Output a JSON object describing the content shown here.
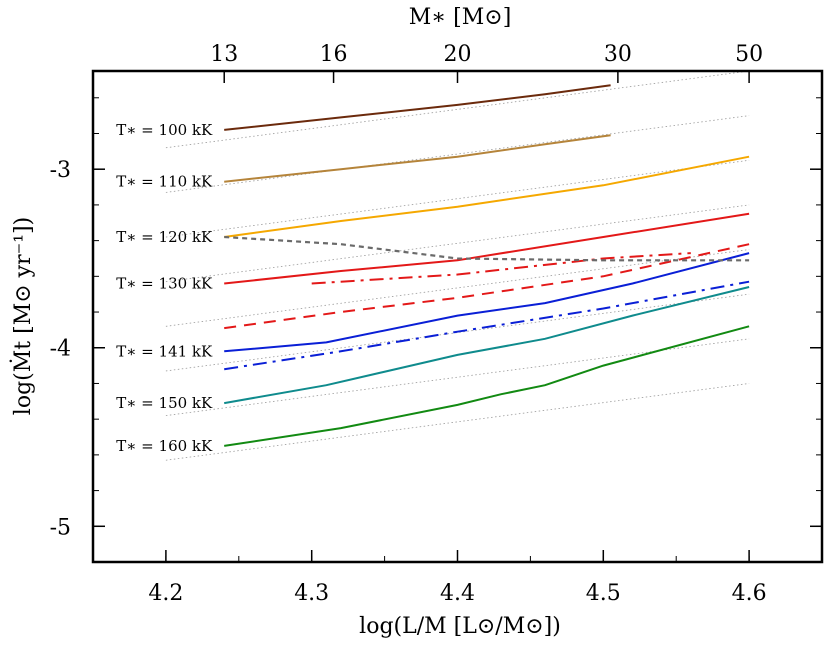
{
  "chart_data": {
    "type": "line",
    "xlabel": "log(L/M [L⊙/M⊙])",
    "ylabel": "log(Ṁt [M⊙ yr⁻¹])",
    "top_xlabel": "M∗ [M⊙]",
    "xlim": [
      4.15,
      4.65
    ],
    "ylim": [
      -5.2,
      -2.45
    ],
    "x_ticks": [
      4.2,
      4.3,
      4.4,
      4.5,
      4.6
    ],
    "x_tick_labels": [
      "4.2",
      "4.3",
      "4.4",
      "4.5",
      "4.6"
    ],
    "y_ticks": [
      -5,
      -4,
      -3
    ],
    "y_tick_labels": [
      "-5",
      "-4",
      "-3"
    ],
    "top_ticks": [
      {
        "x": 4.24,
        "label": "13"
      },
      {
        "x": 4.315,
        "label": "16"
      },
      {
        "x": 4.4,
        "label": "20"
      },
      {
        "x": 4.51,
        "label": "30"
      },
      {
        "x": 4.6,
        "label": "50"
      }
    ],
    "grid": false,
    "series": [
      {
        "name": "T∗ = 100 kK",
        "color": "#6b2a0c",
        "style": "solid",
        "points": [
          [
            4.24,
            -2.78
          ],
          [
            4.32,
            -2.71
          ],
          [
            4.4,
            -2.64
          ],
          [
            4.46,
            -2.58
          ],
          [
            4.505,
            -2.53
          ]
        ]
      },
      {
        "name": "T∗ = 110 kK",
        "color": "#b5843a",
        "style": "solid",
        "points": [
          [
            4.24,
            -3.07
          ],
          [
            4.32,
            -3.0
          ],
          [
            4.4,
            -2.93
          ],
          [
            4.46,
            -2.86
          ],
          [
            4.505,
            -2.81
          ]
        ]
      },
      {
        "name": "T∗ = 120 kK",
        "color": "#f5a800",
        "style": "solid",
        "points": [
          [
            4.24,
            -3.38
          ],
          [
            4.32,
            -3.29
          ],
          [
            4.4,
            -3.21
          ],
          [
            4.5,
            -3.09
          ],
          [
            4.6,
            -2.93
          ]
        ]
      },
      {
        "name": "T∗ = 130 kK",
        "color": "#e31818",
        "style": "solid",
        "points": [
          [
            4.24,
            -3.64
          ],
          [
            4.32,
            -3.57
          ],
          [
            4.4,
            -3.51
          ],
          [
            4.5,
            -3.38
          ],
          [
            4.6,
            -3.25
          ]
        ]
      },
      {
        "name": "",
        "color": "#e31818",
        "style": "dashdot",
        "points": [
          [
            4.3,
            -3.64
          ],
          [
            4.4,
            -3.59
          ],
          [
            4.5,
            -3.5
          ],
          [
            4.56,
            -3.47
          ]
        ]
      },
      {
        "name": "",
        "color": "#e31818",
        "style": "dashed",
        "points": [
          [
            4.24,
            -3.89
          ],
          [
            4.32,
            -3.8
          ],
          [
            4.4,
            -3.72
          ],
          [
            4.5,
            -3.6
          ],
          [
            4.6,
            -3.42
          ]
        ]
      },
      {
        "name": "T∗ = 141 kK",
        "color": "#0a1fd6",
        "style": "solid",
        "points": [
          [
            4.24,
            -4.02
          ],
          [
            4.31,
            -3.97
          ],
          [
            4.4,
            -3.82
          ],
          [
            4.46,
            -3.75
          ],
          [
            4.52,
            -3.64
          ],
          [
            4.6,
            -3.47
          ]
        ]
      },
      {
        "name": "",
        "color": "#0a1fd6",
        "style": "dashdot",
        "points": [
          [
            4.24,
            -4.12
          ],
          [
            4.32,
            -4.02
          ],
          [
            4.4,
            -3.91
          ],
          [
            4.5,
            -3.78
          ],
          [
            4.6,
            -3.63
          ]
        ]
      },
      {
        "name": "T∗ = 150 kK",
        "color": "#0f8b8d",
        "style": "solid",
        "points": [
          [
            4.24,
            -4.31
          ],
          [
            4.31,
            -4.21
          ],
          [
            4.4,
            -4.04
          ],
          [
            4.46,
            -3.95
          ],
          [
            4.52,
            -3.82
          ],
          [
            4.6,
            -3.66
          ]
        ]
      },
      {
        "name": "T∗ = 160 kK",
        "color": "#128a12",
        "style": "solid",
        "points": [
          [
            4.24,
            -4.55
          ],
          [
            4.32,
            -4.45
          ],
          [
            4.4,
            -4.32
          ],
          [
            4.43,
            -4.26
          ],
          [
            4.46,
            -4.21
          ],
          [
            4.5,
            -4.1
          ],
          [
            4.6,
            -3.88
          ]
        ]
      },
      {
        "name": "",
        "color": "#6a6a6a",
        "style": "dotted-gray",
        "points": [
          [
            4.24,
            -3.38
          ],
          [
            4.32,
            -3.42
          ],
          [
            4.38,
            -3.48
          ],
          [
            4.4,
            -3.5
          ],
          [
            4.5,
            -3.51
          ],
          [
            4.6,
            -3.51
          ]
        ]
      }
    ],
    "reference_lines": [
      {
        "x": [
          4.2,
          4.6
        ],
        "y": [
          -2.88,
          -2.45
        ]
      },
      {
        "x": [
          4.2,
          4.6
        ],
        "y": [
          -3.13,
          -2.7
        ]
      },
      {
        "x": [
          4.2,
          4.6
        ],
        "y": [
          -3.38,
          -2.95
        ]
      },
      {
        "x": [
          4.2,
          4.6
        ],
        "y": [
          -3.63,
          -3.2
        ]
      },
      {
        "x": [
          4.2,
          4.6
        ],
        "y": [
          -3.88,
          -3.45
        ]
      },
      {
        "x": [
          4.2,
          4.6
        ],
        "y": [
          -4.13,
          -3.7
        ]
      },
      {
        "x": [
          4.2,
          4.6
        ],
        "y": [
          -4.38,
          -3.95
        ]
      },
      {
        "x": [
          4.2,
          4.6
        ],
        "y": [
          -4.63,
          -4.2
        ]
      }
    ],
    "labels": [
      {
        "text": "T∗ = 100 kK",
        "x": 4.24,
        "y": -2.78
      },
      {
        "text": "T∗ = 110 kK",
        "x": 4.24,
        "y": -3.07
      },
      {
        "text": "T∗ = 120 kK",
        "x": 4.24,
        "y": -3.38
      },
      {
        "text": "T∗ = 130 kK",
        "x": 4.24,
        "y": -3.64
      },
      {
        "text": "T∗ = 141 kK",
        "x": 4.24,
        "y": -4.02
      },
      {
        "text": "T∗ = 150 kK",
        "x": 4.24,
        "y": -4.31
      },
      {
        "text": "T∗ = 160 kK",
        "x": 4.24,
        "y": -4.55
      }
    ]
  }
}
